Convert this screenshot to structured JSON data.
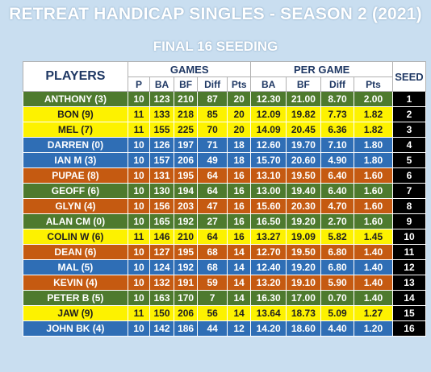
{
  "title": "RETREAT HANDICAP SINGLES - SEASON 2 (2021)",
  "subtitle": "FINAL 16 SEEDING",
  "headers": {
    "players": "PLAYERS",
    "games": "GAMES",
    "per_game": "PER GAME",
    "seed": "SEED",
    "games_cols": [
      "P",
      "BA",
      "BF",
      "Diff",
      "Pts"
    ],
    "per_game_cols": [
      "BA",
      "BF",
      "Diff",
      "Pts"
    ]
  },
  "colors": {
    "green": "#4e7a2e",
    "yellow": "#fdf200",
    "blue": "#2f6eb5",
    "orange": "#c55a11",
    "seed": "#000000"
  },
  "rows": [
    {
      "player": "ANTHONY (3)",
      "p": "10",
      "ba": "123",
      "bf": "210",
      "diff": "87",
      "pts": "20",
      "pg_ba": "12.30",
      "pg_bf": "21.00",
      "pg_diff": "8.70",
      "pg_pts": "2.00",
      "seed": "1",
      "color": "green"
    },
    {
      "player": "BON (9)",
      "p": "11",
      "ba": "133",
      "bf": "218",
      "diff": "85",
      "pts": "20",
      "pg_ba": "12.09",
      "pg_bf": "19.82",
      "pg_diff": "7.73",
      "pg_pts": "1.82",
      "seed": "2",
      "color": "yellow"
    },
    {
      "player": "MEL (7)",
      "p": "11",
      "ba": "155",
      "bf": "225",
      "diff": "70",
      "pts": "20",
      "pg_ba": "14.09",
      "pg_bf": "20.45",
      "pg_diff": "6.36",
      "pg_pts": "1.82",
      "seed": "3",
      "color": "yellow"
    },
    {
      "player": "DARREN (0)",
      "p": "10",
      "ba": "126",
      "bf": "197",
      "diff": "71",
      "pts": "18",
      "pg_ba": "12.60",
      "pg_bf": "19.70",
      "pg_diff": "7.10",
      "pg_pts": "1.80",
      "seed": "4",
      "color": "blue"
    },
    {
      "player": "IAN M (3)",
      "p": "10",
      "ba": "157",
      "bf": "206",
      "diff": "49",
      "pts": "18",
      "pg_ba": "15.70",
      "pg_bf": "20.60",
      "pg_diff": "4.90",
      "pg_pts": "1.80",
      "seed": "5",
      "color": "blue"
    },
    {
      "player": "PUPAE (8)",
      "p": "10",
      "ba": "131",
      "bf": "195",
      "diff": "64",
      "pts": "16",
      "pg_ba": "13.10",
      "pg_bf": "19.50",
      "pg_diff": "6.40",
      "pg_pts": "1.60",
      "seed": "6",
      "color": "orange"
    },
    {
      "player": "GEOFF (6)",
      "p": "10",
      "ba": "130",
      "bf": "194",
      "diff": "64",
      "pts": "16",
      "pg_ba": "13.00",
      "pg_bf": "19.40",
      "pg_diff": "6.40",
      "pg_pts": "1.60",
      "seed": "7",
      "color": "green"
    },
    {
      "player": "GLYN (4)",
      "p": "10",
      "ba": "156",
      "bf": "203",
      "diff": "47",
      "pts": "16",
      "pg_ba": "15.60",
      "pg_bf": "20.30",
      "pg_diff": "4.70",
      "pg_pts": "1.60",
      "seed": "8",
      "color": "orange"
    },
    {
      "player": "ALAN CM (0)",
      "p": "10",
      "ba": "165",
      "bf": "192",
      "diff": "27",
      "pts": "16",
      "pg_ba": "16.50",
      "pg_bf": "19.20",
      "pg_diff": "2.70",
      "pg_pts": "1.60",
      "seed": "9",
      "color": "green"
    },
    {
      "player": "COLIN W (6)",
      "p": "11",
      "ba": "146",
      "bf": "210",
      "diff": "64",
      "pts": "16",
      "pg_ba": "13.27",
      "pg_bf": "19.09",
      "pg_diff": "5.82",
      "pg_pts": "1.45",
      "seed": "10",
      "color": "yellow"
    },
    {
      "player": "DEAN (6)",
      "p": "10",
      "ba": "127",
      "bf": "195",
      "diff": "68",
      "pts": "14",
      "pg_ba": "12.70",
      "pg_bf": "19.50",
      "pg_diff": "6.80",
      "pg_pts": "1.40",
      "seed": "11",
      "color": "orange"
    },
    {
      "player": "MAL (5)",
      "p": "10",
      "ba": "124",
      "bf": "192",
      "diff": "68",
      "pts": "14",
      "pg_ba": "12.40",
      "pg_bf": "19.20",
      "pg_diff": "6.80",
      "pg_pts": "1.40",
      "seed": "12",
      "color": "blue"
    },
    {
      "player": "KEVIN (4)",
      "p": "10",
      "ba": "132",
      "bf": "191",
      "diff": "59",
      "pts": "14",
      "pg_ba": "13.20",
      "pg_bf": "19.10",
      "pg_diff": "5.90",
      "pg_pts": "1.40",
      "seed": "13",
      "color": "orange"
    },
    {
      "player": "PETER B (5)",
      "p": "10",
      "ba": "163",
      "bf": "170",
      "diff": "7",
      "pts": "14",
      "pg_ba": "16.30",
      "pg_bf": "17.00",
      "pg_diff": "0.70",
      "pg_pts": "1.40",
      "seed": "14",
      "color": "green"
    },
    {
      "player": "JAW (9)",
      "p": "11",
      "ba": "150",
      "bf": "206",
      "diff": "56",
      "pts": "14",
      "pg_ba": "13.64",
      "pg_bf": "18.73",
      "pg_diff": "5.09",
      "pg_pts": "1.27",
      "seed": "15",
      "color": "yellow"
    },
    {
      "player": "JOHN BK (4)",
      "p": "10",
      "ba": "142",
      "bf": "186",
      "diff": "44",
      "pts": "12",
      "pg_ba": "14.20",
      "pg_bf": "18.60",
      "pg_diff": "4.40",
      "pg_pts": "1.20",
      "seed": "16",
      "color": "blue"
    }
  ]
}
